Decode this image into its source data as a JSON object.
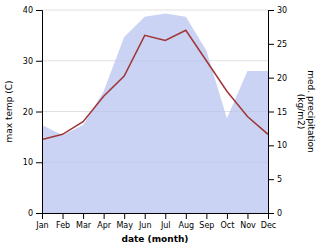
{
  "chart_data": {
    "type": "line",
    "categories": [
      "Jan",
      "Feb",
      "Mar",
      "Apr",
      "May",
      "Jun",
      "Jul",
      "Aug",
      "Sep",
      "Oct",
      "Nov",
      "Dec"
    ],
    "series": [
      {
        "type": "area",
        "axis": "y2",
        "color": "#b8c4f0",
        "values": [
          13.0,
          11.5,
          13.0,
          18.0,
          26.0,
          29.0,
          29.5,
          29.0,
          24.0,
          14.0,
          21.0,
          21.0
        ]
      },
      {
        "type": "line",
        "color": "#a03535",
        "values": [
          14.5,
          15.5,
          18.0,
          23.0,
          27.0,
          35.0,
          34.0,
          36.0,
          30.0,
          24.0,
          19.0,
          15.5
        ]
      }
    ],
    "xlabel": "date (month)",
    "ylabel": "max temp (C)",
    "y2label": "med. precipitation\n(kg/m2)",
    "ylim": [
      0,
      40
    ],
    "yticks": [
      0,
      10,
      20,
      30,
      40
    ],
    "y2lim": [
      0,
      30
    ],
    "y2ticks": [
      0,
      5,
      10,
      15,
      20,
      25,
      30
    ],
    "grid": true
  }
}
